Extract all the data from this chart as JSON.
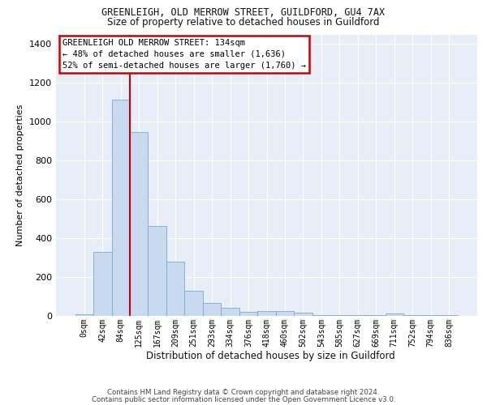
{
  "title1": "GREENLEIGH, OLD MERROW STREET, GUILDFORD, GU4 7AX",
  "title2": "Size of property relative to detached houses in Guildford",
  "xlabel": "Distribution of detached houses by size in Guildford",
  "ylabel": "Number of detached properties",
  "footnote1": "Contains HM Land Registry data © Crown copyright and database right 2024.",
  "footnote2": "Contains public sector information licensed under the Open Government Licence v3.0.",
  "bar_color": "#c9d9f0",
  "bar_edge_color": "#7aaad0",
  "vline_color": "#cc0000",
  "annotation_title": "GREENLEIGH OLD MERROW STREET: 134sqm",
  "annotation_line2": "← 48% of detached houses are smaller (1,636)",
  "annotation_line3": "52% of semi-detached houses are larger (1,760) →",
  "annotation_box_color": "#cc0000",
  "categories": [
    "0sqm",
    "42sqm",
    "84sqm",
    "125sqm",
    "167sqm",
    "209sqm",
    "251sqm",
    "293sqm",
    "334sqm",
    "376sqm",
    "418sqm",
    "460sqm",
    "502sqm",
    "543sqm",
    "585sqm",
    "627sqm",
    "669sqm",
    "711sqm",
    "752sqm",
    "794sqm",
    "836sqm"
  ],
  "values": [
    10,
    328,
    1115,
    946,
    463,
    278,
    130,
    68,
    40,
    22,
    25,
    25,
    18,
    5,
    5,
    5,
    5,
    12,
    5,
    5,
    5
  ],
  "ylim": [
    0,
    1450
  ],
  "yticks": [
    0,
    200,
    400,
    600,
    800,
    1000,
    1200,
    1400
  ],
  "background_color": "#e8eef8",
  "grid_color": "#ffffff",
  "fig_background": "#ffffff",
  "vline_index": 2.5
}
